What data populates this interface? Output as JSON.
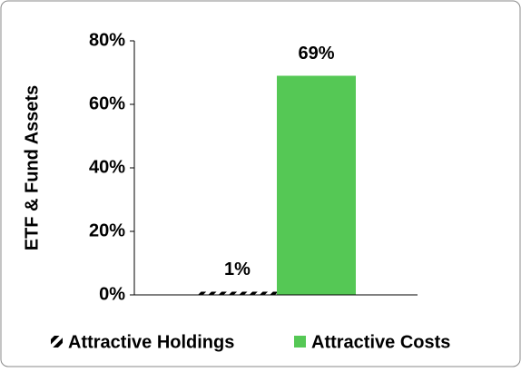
{
  "chart_data": {
    "type": "bar",
    "y_label": "ETF & Fund Assets",
    "categories": [
      null
    ],
    "series": [
      {
        "name": "Attractive Holdings",
        "color": "#000000",
        "hatch": true,
        "values": [
          1
        ],
        "value_labels": [
          "1%"
        ]
      },
      {
        "name": "Attractive Costs",
        "color": "#55c855",
        "hatch": false,
        "values": [
          69
        ],
        "value_labels": [
          "69%"
        ]
      }
    ],
    "ylim": [
      0,
      80
    ],
    "yticks": [
      {
        "value": 0,
        "label": "0%"
      },
      {
        "value": 20,
        "label": "20%"
      },
      {
        "value": 40,
        "label": "40%"
      },
      {
        "value": 60,
        "label": "60%"
      },
      {
        "value": 80,
        "label": "80%"
      }
    ],
    "grid": false
  }
}
